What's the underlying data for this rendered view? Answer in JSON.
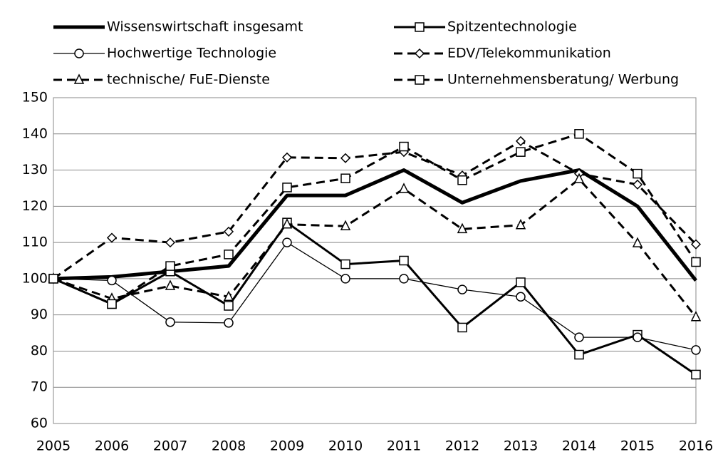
{
  "chart_data": {
    "type": "line",
    "x": [
      2005,
      2006,
      2007,
      2008,
      2009,
      2010,
      2011,
      2012,
      2013,
      2014,
      2015,
      2016
    ],
    "xlim": [
      2005,
      2016
    ],
    "xticks": [
      2005,
      2006,
      2007,
      2008,
      2009,
      2010,
      2011,
      2012,
      2013,
      2014,
      2015,
      2016
    ],
    "ylim": [
      60,
      150
    ],
    "yticks": [
      60,
      70,
      80,
      90,
      100,
      110,
      120,
      130,
      140,
      150
    ],
    "grid": true,
    "series": [
      {
        "name": "Wissenswirtschaft insgesamt",
        "color": "#000000",
        "width": 5,
        "dash": "solid",
        "marker": "none",
        "values": [
          100,
          100.5,
          102,
          103.5,
          123,
          123,
          130,
          121,
          127,
          130,
          120,
          99.5
        ]
      },
      {
        "name": "Spitzentechnologie",
        "color": "#000000",
        "width": 3,
        "dash": "solid",
        "marker": "square",
        "values": [
          100,
          93,
          102,
          92.5,
          115.5,
          104,
          105,
          86.5,
          99,
          79,
          84.5,
          73.5
        ]
      },
      {
        "name": "Hochwertige Technologie",
        "color": "#000000",
        "width": 1.3,
        "dash": "solid",
        "marker": "circle",
        "values": [
          100,
          99.5,
          88,
          87.8,
          110,
          100,
          100,
          97,
          95,
          83.8,
          83.8,
          80.3
        ]
      },
      {
        "name": "EDV/Telekommunikation",
        "color": "#000000",
        "width": 3,
        "dash": "dashed",
        "marker": "diamond",
        "values": [
          100,
          111.3,
          110,
          113,
          133.5,
          133.3,
          135,
          128.5,
          138,
          129,
          126,
          109.5
        ]
      },
      {
        "name": "technische/ FuE-Dienste",
        "color": "#000000",
        "width": 3,
        "dash": "dashed",
        "marker": "triangle",
        "values": [
          100,
          94.5,
          98,
          95,
          115,
          114.5,
          124.8,
          113.7,
          114.8,
          127.5,
          109.8,
          89.4
        ]
      },
      {
        "name": "Unternehmensberatung/ Werbung",
        "color": "#000000",
        "width": 3,
        "dash": "dashed",
        "marker": "square",
        "values": [
          100,
          93,
          103.5,
          106.7,
          125.2,
          127.7,
          136.5,
          127.2,
          135,
          140,
          129,
          104.6
        ]
      }
    ]
  }
}
